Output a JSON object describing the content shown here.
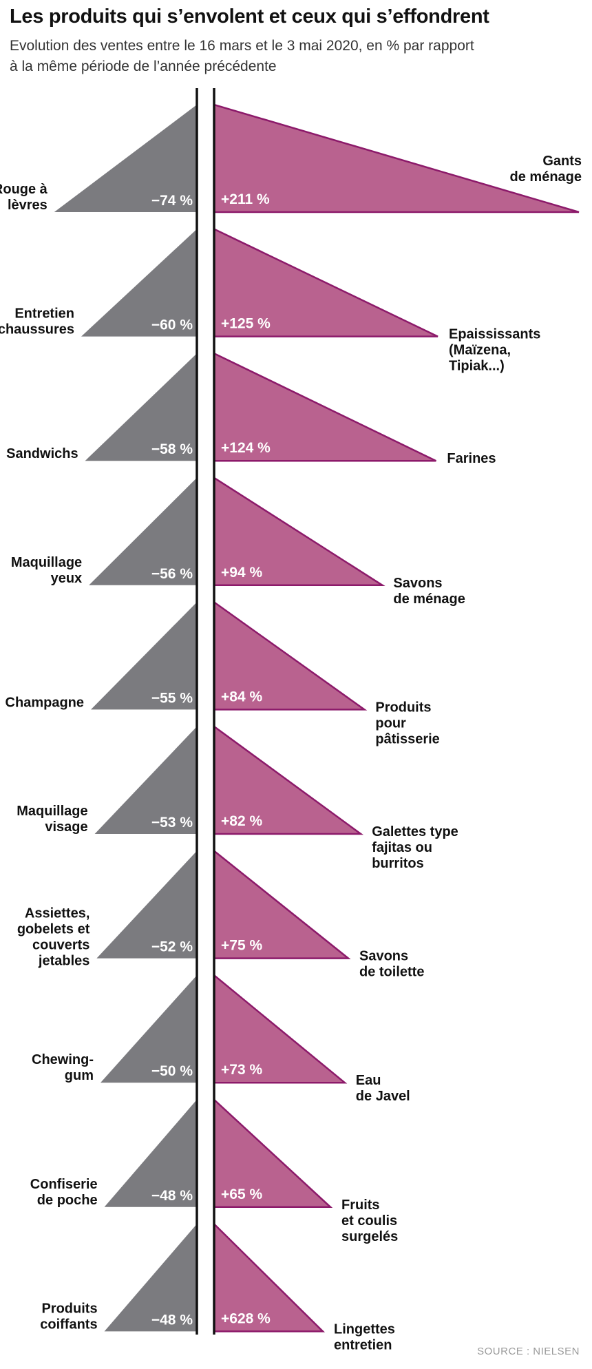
{
  "header": {
    "title": "Les produits qui s’envolent et ceux qui s’effondrent",
    "subtitle_line1": "Evolution des ventes entre le 16 mars et le 3 mai 2020, en % par rapport",
    "subtitle_line2": "à la même période de l’année précédente"
  },
  "source": "SOURCE : NIELSEN",
  "colors": {
    "decline": "#7b7b7f",
    "growth": "#b9628f",
    "growth_outline": "#8c1a6a",
    "axis": "#111111"
  },
  "chart_data": {
    "type": "bar",
    "unit": "%",
    "declines": [
      {
        "label": "Rouge à lèvres",
        "lines": [
          "Rouge à",
          "lèvres"
        ],
        "value": -74,
        "display": "−74 %"
      },
      {
        "label": "Entretien chaussures",
        "lines": [
          "Entretien",
          "chaussures"
        ],
        "value": -60,
        "display": "−60 %"
      },
      {
        "label": "Sandwichs",
        "lines": [
          "Sandwichs"
        ],
        "value": -58,
        "display": "−58 %"
      },
      {
        "label": "Maquillage yeux",
        "lines": [
          "Maquillage",
          "yeux"
        ],
        "value": -56,
        "display": "−56 %"
      },
      {
        "label": "Champagne",
        "lines": [
          "Champagne"
        ],
        "value": -55,
        "display": "−55 %"
      },
      {
        "label": "Maquillage visage",
        "lines": [
          "Maquillage",
          "visage"
        ],
        "value": -53,
        "display": "−53 %"
      },
      {
        "label": "Assiettes, gobelets et couverts jetables",
        "lines": [
          "Assiettes,",
          "gobelets et",
          "couverts",
          "jetables"
        ],
        "value": -52,
        "display": "−52 %"
      },
      {
        "label": "Chewing-gum",
        "lines": [
          "Chewing-",
          "gum"
        ],
        "value": -50,
        "display": "−50 %"
      },
      {
        "label": "Confiserie de poche",
        "lines": [
          "Confiserie",
          "de poche"
        ],
        "value": -48,
        "display": "−48 %"
      },
      {
        "label": "Produits coiffants",
        "lines": [
          "Produits",
          "coiffants"
        ],
        "value": -48,
        "display": "−48 %"
      }
    ],
    "growths": [
      {
        "label": "Gants de ménage",
        "lines": [
          "Gants",
          "de ménage"
        ],
        "value": 211,
        "display": "+211 %"
      },
      {
        "label": "Epaississants (Maïzena, Tipiak...)",
        "lines": [
          "Epaississants",
          "(Maïzena,",
          "Tipiak...)"
        ],
        "value": 125,
        "display": "+125 %"
      },
      {
        "label": "Farines",
        "lines": [
          "Farines"
        ],
        "value": 124,
        "display": "+124 %"
      },
      {
        "label": "Savons de ménage",
        "lines": [
          "Savons",
          "de ménage"
        ],
        "value": 94,
        "display": "+94 %"
      },
      {
        "label": "Produits pour pâtisserie",
        "lines": [
          "Produits",
          "pour",
          "pâtisserie"
        ],
        "value": 84,
        "display": "+84 %"
      },
      {
        "label": "Galettes type fajitas ou burritos",
        "lines": [
          "Galettes type",
          "fajitas ou",
          "burritos"
        ],
        "value": 82,
        "display": "+82 %"
      },
      {
        "label": "Savons de toilette",
        "lines": [
          "Savons",
          "de toilette"
        ],
        "value": 75,
        "display": "+75 %"
      },
      {
        "label": "Eau de Javel",
        "lines": [
          "Eau",
          "de Javel"
        ],
        "value": 73,
        "display": "+73 %"
      },
      {
        "label": "Fruits et coulis surgelés",
        "lines": [
          "Fruits",
          "et coulis",
          "surgelés"
        ],
        "value": 65,
        "display": "+65 %"
      },
      {
        "label": "Lingettes entretien",
        "lines": [
          "Lingettes",
          "entretien"
        ],
        "value": 628,
        "display": "+628 %"
      }
    ]
  }
}
